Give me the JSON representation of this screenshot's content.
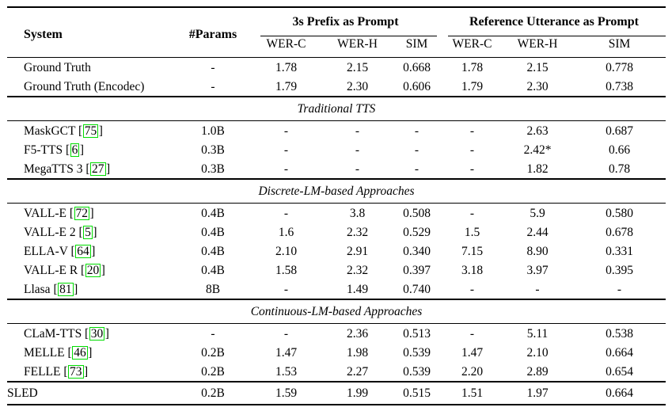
{
  "colors": {
    "citation_box_border": "#00dc00",
    "rule": "#000000",
    "background": "#ffffff"
  },
  "table": {
    "header": {
      "system": "System",
      "params": "#Params",
      "groups": [
        {
          "label": "3s Prefix as Prompt",
          "cols": [
            "WER-C",
            "WER-H",
            "SIM"
          ]
        },
        {
          "label": "Reference Utterance as Prompt",
          "cols": [
            "WER-C",
            "WER-H",
            "SIM"
          ]
        }
      ]
    },
    "sections": [
      {
        "title": null,
        "rows": [
          {
            "system": "Ground Truth",
            "cite": null,
            "params": "-",
            "values": [
              "1.78",
              "2.15",
              "0.668",
              "1.78",
              "2.15",
              "0.778"
            ]
          },
          {
            "system": "Ground Truth (Encodec)",
            "cite": null,
            "params": "-",
            "values": [
              "1.79",
              "2.30",
              "0.606",
              "1.79",
              "2.30",
              "0.738"
            ]
          }
        ]
      },
      {
        "title": "Traditional TTS",
        "rows": [
          {
            "system": "MaskGCT",
            "cite": "75",
            "params": "1.0B",
            "values": [
              "-",
              "-",
              "-",
              "-",
              "2.63",
              "0.687"
            ]
          },
          {
            "system": "F5-TTS",
            "cite": "6",
            "params": "0.3B",
            "values": [
              "-",
              "-",
              "-",
              "-",
              "2.42*",
              "0.66"
            ]
          },
          {
            "system": "MegaTTS 3",
            "cite": "27",
            "params": "0.3B",
            "values": [
              "-",
              "-",
              "-",
              "-",
              "1.82",
              "0.78"
            ]
          }
        ]
      },
      {
        "title": "Discrete-LM-based Approaches",
        "rows": [
          {
            "system": "VALL-E",
            "cite": "72",
            "params": "0.4B",
            "values": [
              "-",
              "3.8",
              "0.508",
              "-",
              "5.9",
              "0.580"
            ]
          },
          {
            "system": "VALL-E 2",
            "cite": "5",
            "params": "0.4B",
            "values": [
              "1.6",
              "2.32",
              "0.529",
              "1.5",
              "2.44",
              "0.678"
            ]
          },
          {
            "system": "ELLA-V",
            "cite": "64",
            "params": "0.4B",
            "values": [
              "2.10",
              "2.91",
              "0.340",
              "7.15",
              "8.90",
              "0.331"
            ]
          },
          {
            "system": "VALL-E R",
            "cite": "20",
            "params": "0.4B",
            "values": [
              "1.58",
              "2.32",
              "0.397",
              "3.18",
              "3.97",
              "0.395"
            ]
          },
          {
            "system": "Llasa",
            "cite": "81",
            "params": "8B",
            "values": [
              "-",
              "1.49",
              "0.740",
              "-",
              "-",
              "-"
            ]
          }
        ]
      },
      {
        "title": "Continuous-LM-based Approaches",
        "rows": [
          {
            "system": "CLaM-TTS",
            "cite": "30",
            "params": "-",
            "values": [
              "-",
              "2.36",
              "0.513",
              "-",
              "5.11",
              "0.538"
            ]
          },
          {
            "system": "MELLE",
            "cite": "46",
            "params": "0.2B",
            "values": [
              "1.47",
              "1.98",
              "0.539",
              "1.47",
              "2.10",
              "0.664"
            ]
          },
          {
            "system": "FELLE",
            "cite": "73",
            "params": "0.2B",
            "values": [
              "1.53",
              "2.27",
              "0.539",
              "2.20",
              "2.89",
              "0.654"
            ]
          }
        ]
      },
      {
        "title": null,
        "final": true,
        "rows": [
          {
            "system": "SLED",
            "cite": null,
            "params": "0.2B",
            "values": [
              "1.59",
              "1.99",
              "0.515",
              "1.51",
              "1.97",
              "0.664"
            ]
          }
        ]
      }
    ]
  }
}
